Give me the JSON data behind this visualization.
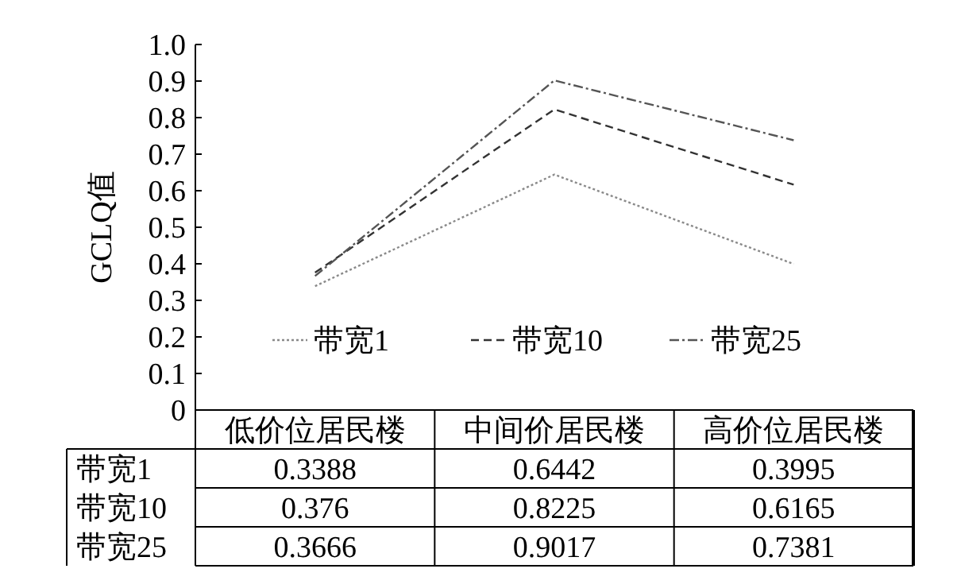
{
  "chart_data": {
    "type": "line",
    "ylabel": "GCLQ值",
    "categories": [
      "低价位居民楼",
      "中间价居民楼",
      "高价位居民楼"
    ],
    "series": [
      {
        "name": "带宽1",
        "color": "#8a8a8a",
        "values": [
          0.3388,
          0.6442,
          0.3995
        ],
        "line_style": "dotted"
      },
      {
        "name": "带宽10",
        "color": "#333333",
        "values": [
          0.376,
          0.8225,
          0.6165
        ],
        "line_style": "dashed"
      },
      {
        "name": "带宽25",
        "color": "#555555",
        "values": [
          0.3666,
          0.9017,
          0.7381
        ],
        "line_style": "dashdot"
      }
    ],
    "ylim": [
      0,
      1
    ],
    "yticks": [
      0,
      {
        "value": 0.1,
        "label": "0.1"
      },
      {
        "value": 0.2,
        "label": "0.2"
      },
      {
        "value": 0.3,
        "label": "0.3"
      },
      {
        "value": 0.4,
        "label": "0.4"
      },
      {
        "value": 0.5,
        "label": "0.5"
      },
      {
        "value": 0.6,
        "label": "0.6"
      },
      {
        "value": 0.7,
        "label": "0.7"
      },
      {
        "value": 0.8,
        "label": "0.8"
      },
      {
        "value": 0.9,
        "label": "0.9"
      },
      {
        "value": 1,
        "label": "1.0"
      }
    ],
    "grid": false,
    "legend": "bottom",
    "data_labels": true
  }
}
